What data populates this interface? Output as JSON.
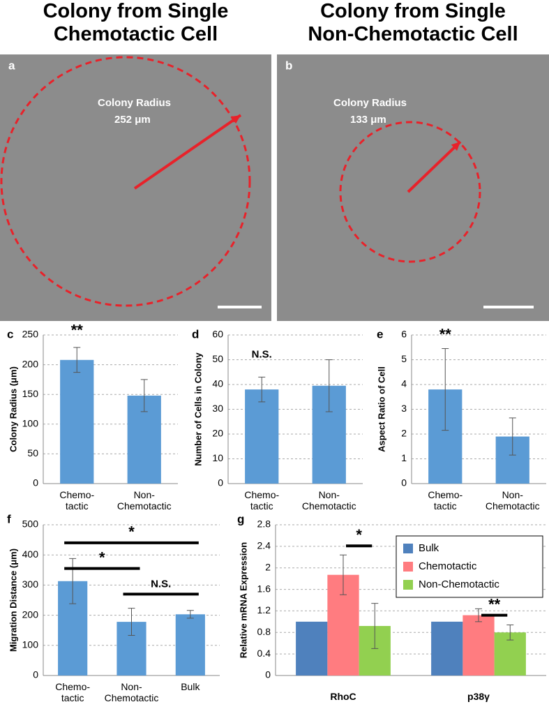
{
  "panels": [
    {
      "title": "Colony from Single\nChemotactic Cell",
      "letter": "a",
      "caption": "Colony Radius",
      "radius": "252 μm"
    },
    {
      "title": "Colony from Single\nNon-Chemotactic Cell",
      "letter": "b",
      "caption": "Colony Radius",
      "radius": "133 μm"
    }
  ],
  "chart_data": [
    {
      "type": "bar",
      "letter": "c",
      "y_label": "Colony Radius (μm)",
      "categories": [
        "Chemo-\ntactic",
        "Non-\nChemotactic"
      ],
      "values": [
        208,
        148
      ],
      "errors": [
        21,
        27
      ],
      "color": "#5b9bd5",
      "ylim": [
        0,
        250
      ],
      "yticks": [
        0,
        50,
        100,
        150,
        200,
        250
      ],
      "grid": true,
      "annotations": [
        "**"
      ]
    },
    {
      "type": "bar",
      "letter": "d",
      "y_label": "Number of Cells in Colony",
      "categories": [
        "Chemo-\ntactic",
        "Non-\nChemotactic"
      ],
      "values": [
        38,
        39.5
      ],
      "errors": [
        5,
        10.5
      ],
      "color": "#5b9bd5",
      "ylim": [
        0,
        60
      ],
      "yticks": [
        0,
        10,
        20,
        30,
        40,
        50,
        60
      ],
      "grid": true,
      "annotations": [
        "N.S."
      ]
    },
    {
      "type": "bar",
      "letter": "e",
      "y_label": "Aspect Ratio of Cell",
      "categories": [
        "Chemo-\ntactic",
        "Non-\nChemotactic"
      ],
      "values": [
        3.8,
        1.9
      ],
      "errors": [
        1.65,
        0.75
      ],
      "color": "#5b9bd5",
      "ylim": [
        0,
        6
      ],
      "yticks": [
        0,
        1,
        2,
        3,
        4,
        5,
        6
      ],
      "grid": true,
      "annotations": [
        "**"
      ]
    },
    {
      "type": "bar",
      "letter": "f",
      "y_label": "Migration Distance (μm)",
      "categories": [
        "Chemo-\ntactic",
        "Non-\nChemotactic",
        "Bulk"
      ],
      "values": [
        313,
        178,
        203
      ],
      "errors": [
        75,
        45,
        13
      ],
      "color": "#5b9bd5",
      "ylim": [
        0,
        500
      ],
      "yticks": [
        0,
        100,
        200,
        300,
        400,
        500
      ],
      "grid": true,
      "annotations": [
        "*",
        "*",
        "N.S."
      ]
    },
    {
      "type": "grouped_bar",
      "letter": "g",
      "y_label": "Relative mRNA Expression",
      "categories": [
        "RhoC",
        "p38γ"
      ],
      "series": [
        {
          "name": "Bulk",
          "color": "#4f81bd",
          "values": [
            1.0,
            1.0
          ],
          "errors": [
            null,
            null
          ]
        },
        {
          "name": "Chemotactic",
          "color": "#ff7c80",
          "values": [
            1.87,
            1.12
          ],
          "errors": [
            0.37,
            0.12
          ]
        },
        {
          "name": "Non-Chemotactic",
          "color": "#92d050",
          "values": [
            0.92,
            0.8
          ],
          "errors": [
            0.42,
            0.14
          ]
        }
      ],
      "ylim": [
        0,
        2.8
      ],
      "yticks": [
        0,
        0.4,
        0.8,
        1.2,
        1.6,
        2,
        2.4,
        2.8
      ],
      "grid": true,
      "legend": "top-right",
      "annotations": [
        "*",
        "**"
      ]
    }
  ]
}
